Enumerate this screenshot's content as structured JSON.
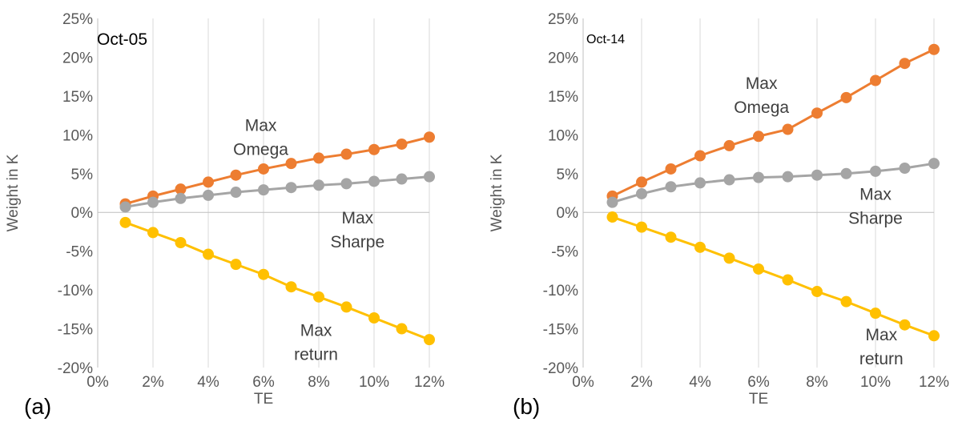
{
  "chart_data": [
    {
      "type": "line",
      "panel_label": "(a)",
      "inset_label": "Oct-05",
      "xlabel": "TE",
      "ylabel": "Weight in K",
      "xlim": [
        0,
        12
      ],
      "ylim": [
        -20,
        25
      ],
      "x_ticks": [
        "0%",
        "2%",
        "4%",
        "6%",
        "8%",
        "10%",
        "12%"
      ],
      "y_ticks": [
        "-20%",
        "-15%",
        "-10%",
        "-5%",
        "0%",
        "5%",
        "10%",
        "15%",
        "20%",
        "25%"
      ],
      "grid": "vertical",
      "x": [
        1,
        2,
        3,
        4,
        5,
        6,
        7,
        8,
        9,
        10,
        11,
        12
      ],
      "series": [
        {
          "id": "omega",
          "color": "#ED7D31",
          "values": [
            1.1,
            2.1,
            3.0,
            3.9,
            4.8,
            5.6,
            6.3,
            7.0,
            7.5,
            8.1,
            8.8,
            9.7
          ]
        },
        {
          "id": "sharpe",
          "color": "#A5A5A5",
          "values": [
            0.7,
            1.3,
            1.8,
            2.2,
            2.6,
            2.9,
            3.2,
            3.5,
            3.7,
            4.0,
            4.3,
            4.6
          ]
        },
        {
          "id": "return",
          "color": "#FFC000",
          "values": [
            -1.3,
            -2.6,
            -3.9,
            -5.4,
            -6.7,
            -8.0,
            -9.6,
            -10.9,
            -12.2,
            -13.6,
            -15.0,
            -16.4
          ]
        }
      ],
      "annotations": [
        {
          "lines": [
            "Max",
            "Omega"
          ],
          "x": 5.9,
          "y": 10.5
        },
        {
          "lines": [
            "Max",
            "Sharpe"
          ],
          "x": 9.4,
          "y": -1.4
        },
        {
          "lines": [
            "Max",
            "return"
          ],
          "x": 7.9,
          "y": -15.9
        }
      ]
    },
    {
      "type": "line",
      "panel_label": "(b)",
      "inset_label": "Oct-14",
      "xlabel": "TE",
      "ylabel": "Weight in K",
      "xlim": [
        0,
        12
      ],
      "ylim": [
        -20,
        25
      ],
      "x_ticks": [
        "0%",
        "2%",
        "4%",
        "6%",
        "8%",
        "10%",
        "12%"
      ],
      "y_ticks": [
        "-20%",
        "-15%",
        "-10%",
        "-5%",
        "0%",
        "5%",
        "10%",
        "15%",
        "20%",
        "25%"
      ],
      "grid": "vertical",
      "x": [
        1,
        2,
        3,
        4,
        5,
        6,
        7,
        8,
        9,
        10,
        11,
        12
      ],
      "series": [
        {
          "id": "omega",
          "color": "#ED7D31",
          "values": [
            2.1,
            3.9,
            5.6,
            7.3,
            8.6,
            9.8,
            10.7,
            12.8,
            14.8,
            17.0,
            19.2,
            21.0
          ]
        },
        {
          "id": "sharpe",
          "color": "#A5A5A5",
          "values": [
            1.3,
            2.4,
            3.3,
            3.8,
            4.2,
            4.5,
            4.6,
            4.8,
            5.0,
            5.3,
            5.7,
            6.3
          ]
        },
        {
          "id": "return",
          "color": "#FFC000",
          "values": [
            -0.6,
            -1.9,
            -3.2,
            -4.5,
            -5.9,
            -7.3,
            -8.7,
            -10.2,
            -11.5,
            -13.0,
            -14.5,
            -15.9
          ]
        }
      ],
      "annotations": [
        {
          "lines": [
            "Max",
            "Omega"
          ],
          "x": 6.1,
          "y": 15.9
        },
        {
          "lines": [
            "Max",
            "Sharpe"
          ],
          "x": 10.0,
          "y": 1.6
        },
        {
          "lines": [
            "Max",
            "return"
          ],
          "x": 10.2,
          "y": -16.5
        }
      ]
    }
  ]
}
